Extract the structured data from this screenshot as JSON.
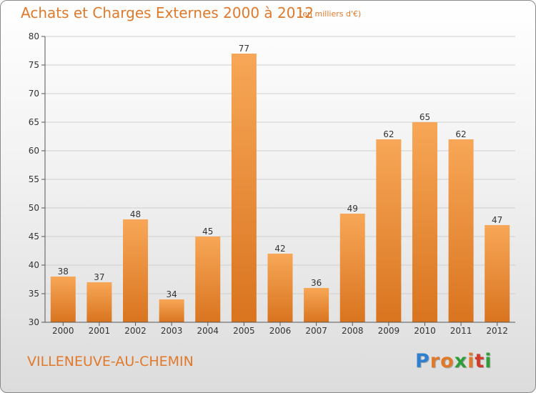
{
  "title": "Achats et Charges Externes 2000 à 2012",
  "subtitle": "(en milliers d'€)",
  "commune": "VILLENEUVE-AU-CHEMIN",
  "logo": {
    "text": "Proxiti",
    "letters": [
      {
        "char": "P",
        "color": "#2f7fd0"
      },
      {
        "char": "r",
        "color": "#e0792a"
      },
      {
        "char": "o",
        "color": "#e0792a"
      },
      {
        "char": "x",
        "color": "#2f9e3a"
      },
      {
        "char": "i",
        "color": "#e0792a"
      },
      {
        "char": "t",
        "color": "#d23a2a"
      },
      {
        "char": "i",
        "color": "#2f9e3a"
      }
    ]
  },
  "colors": {
    "accent": "#e0792a",
    "bar_top": "#f7a757",
    "bar_bottom": "#d9741f",
    "grid": "#cfcfcf",
    "axis": "#555555"
  },
  "chart_data": {
    "type": "bar",
    "categories": [
      "2000",
      "2001",
      "2002",
      "2003",
      "2004",
      "2005",
      "2006",
      "2007",
      "2008",
      "2009",
      "2010",
      "2011",
      "2012"
    ],
    "values": [
      38,
      37,
      48,
      34,
      45,
      77,
      42,
      36,
      49,
      62,
      65,
      62,
      47
    ],
    "ylim": [
      30,
      80
    ],
    "yticks": [
      30,
      35,
      40,
      45,
      50,
      55,
      60,
      65,
      70,
      75,
      80
    ],
    "grid": true,
    "legend": "none",
    "title": "Achats et Charges Externes 2000 à 2012",
    "xlabel": "",
    "ylabel": ""
  }
}
